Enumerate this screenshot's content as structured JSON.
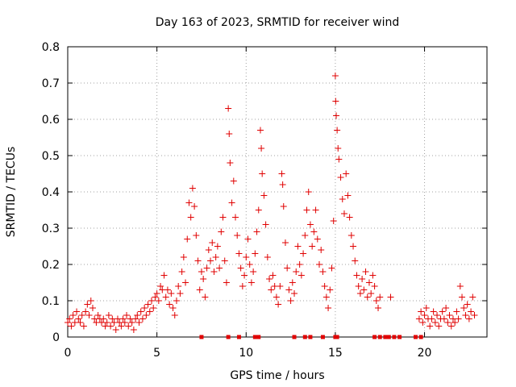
{
  "chart_data": {
    "type": "scatter",
    "title": "Day 163 of 2023, SRMTID for receiver wind",
    "xlabel": "GPS time / hours",
    "ylabel": "SRMTID / TECUs",
    "xlim": [
      0,
      23.5
    ],
    "ylim": [
      0,
      0.8
    ],
    "x_ticks": [
      "0",
      "5",
      "10",
      "15",
      "20"
    ],
    "y_ticks": [
      "0",
      "0.1",
      "0.2",
      "0.3",
      "0.4",
      "0.5",
      "0.6",
      "0.7",
      "0.8"
    ],
    "grid": true,
    "marker": "+",
    "marker_color": "#e00000",
    "series": [
      {
        "name": "SRMTID",
        "points": [
          [
            0.0,
            0.04
          ],
          [
            0.1,
            0.05
          ],
          [
            0.2,
            0.03
          ],
          [
            0.3,
            0.06
          ],
          [
            0.4,
            0.04
          ],
          [
            0.5,
            0.07
          ],
          [
            0.6,
            0.05
          ],
          [
            0.7,
            0.04
          ],
          [
            0.8,
            0.06
          ],
          [
            0.9,
            0.03
          ],
          [
            1.0,
            0.07
          ],
          [
            1.1,
            0.09
          ],
          [
            1.2,
            0.06
          ],
          [
            1.3,
            0.1
          ],
          [
            1.4,
            0.08
          ],
          [
            1.5,
            0.05
          ],
          [
            1.6,
            0.04
          ],
          [
            1.7,
            0.06
          ],
          [
            1.8,
            0.05
          ],
          [
            1.9,
            0.04
          ],
          [
            2.0,
            0.05
          ],
          [
            2.1,
            0.03
          ],
          [
            2.2,
            0.04
          ],
          [
            2.3,
            0.06
          ],
          [
            2.4,
            0.03
          ],
          [
            2.5,
            0.05
          ],
          [
            2.6,
            0.04
          ],
          [
            2.7,
            0.02
          ],
          [
            2.8,
            0.05
          ],
          [
            2.9,
            0.04
          ],
          [
            3.0,
            0.03
          ],
          [
            3.1,
            0.05
          ],
          [
            3.2,
            0.04
          ],
          [
            3.3,
            0.06
          ],
          [
            3.4,
            0.03
          ],
          [
            3.5,
            0.05
          ],
          [
            3.6,
            0.04
          ],
          [
            3.7,
            0.02
          ],
          [
            3.8,
            0.05
          ],
          [
            3.9,
            0.06
          ],
          [
            4.0,
            0.04
          ],
          [
            4.1,
            0.07
          ],
          [
            4.2,
            0.05
          ],
          [
            4.3,
            0.08
          ],
          [
            4.4,
            0.06
          ],
          [
            4.5,
            0.09
          ],
          [
            4.6,
            0.07
          ],
          [
            4.7,
            0.1
          ],
          [
            4.8,
            0.08
          ],
          [
            4.9,
            0.11
          ],
          [
            5.0,
            0.12
          ],
          [
            5.1,
            0.1
          ],
          [
            5.2,
            0.14
          ],
          [
            5.3,
            0.13
          ],
          [
            5.4,
            0.17
          ],
          [
            5.5,
            0.11
          ],
          [
            5.6,
            0.13
          ],
          [
            5.7,
            0.09
          ],
          [
            5.8,
            0.12
          ],
          [
            5.9,
            0.08
          ],
          [
            6.0,
            0.06
          ],
          [
            6.1,
            0.1
          ],
          [
            6.2,
            0.14
          ],
          [
            6.3,
            0.12
          ],
          [
            6.4,
            0.18
          ],
          [
            6.5,
            0.22
          ],
          [
            6.6,
            0.15
          ],
          [
            6.7,
            0.27
          ],
          [
            6.8,
            0.37
          ],
          [
            6.9,
            0.33
          ],
          [
            7.0,
            0.41
          ],
          [
            7.1,
            0.36
          ],
          [
            7.2,
            0.28
          ],
          [
            7.3,
            0.21
          ],
          [
            7.4,
            0.13
          ],
          [
            7.5,
            0.18
          ],
          [
            7.6,
            0.16
          ],
          [
            7.7,
            0.11
          ],
          [
            7.8,
            0.19
          ],
          [
            7.9,
            0.24
          ],
          [
            8.0,
            0.21
          ],
          [
            8.1,
            0.26
          ],
          [
            8.2,
            0.18
          ],
          [
            8.3,
            0.22
          ],
          [
            8.4,
            0.25
          ],
          [
            8.5,
            0.19
          ],
          [
            8.6,
            0.29
          ],
          [
            8.7,
            0.33
          ],
          [
            8.8,
            0.21
          ],
          [
            8.9,
            0.15
          ],
          [
            9.0,
            0.63
          ],
          [
            9.05,
            0.56
          ],
          [
            9.1,
            0.48
          ],
          [
            9.2,
            0.37
          ],
          [
            9.3,
            0.43
          ],
          [
            9.4,
            0.33
          ],
          [
            9.5,
            0.28
          ],
          [
            9.6,
            0.23
          ],
          [
            9.7,
            0.19
          ],
          [
            9.8,
            0.14
          ],
          [
            9.9,
            0.17
          ],
          [
            10.0,
            0.22
          ],
          [
            10.1,
            0.27
          ],
          [
            10.2,
            0.2
          ],
          [
            10.3,
            0.15
          ],
          [
            10.4,
            0.18
          ],
          [
            10.5,
            0.23
          ],
          [
            10.6,
            0.29
          ],
          [
            10.7,
            0.35
          ],
          [
            10.8,
            0.57
          ],
          [
            10.85,
            0.52
          ],
          [
            10.9,
            0.45
          ],
          [
            11.0,
            0.39
          ],
          [
            11.1,
            0.31
          ],
          [
            11.2,
            0.22
          ],
          [
            11.3,
            0.16
          ],
          [
            11.4,
            0.13
          ],
          [
            11.5,
            0.17
          ],
          [
            11.6,
            0.14
          ],
          [
            11.7,
            0.11
          ],
          [
            11.8,
            0.09
          ],
          [
            11.9,
            0.14
          ],
          [
            12.0,
            0.45
          ],
          [
            12.05,
            0.42
          ],
          [
            12.1,
            0.36
          ],
          [
            12.2,
            0.26
          ],
          [
            12.3,
            0.19
          ],
          [
            12.4,
            0.13
          ],
          [
            12.5,
            0.1
          ],
          [
            12.6,
            0.15
          ],
          [
            12.7,
            0.12
          ],
          [
            12.8,
            0.18
          ],
          [
            12.9,
            0.25
          ],
          [
            13.0,
            0.2
          ],
          [
            13.1,
            0.17
          ],
          [
            13.2,
            0.23
          ],
          [
            13.3,
            0.28
          ],
          [
            13.4,
            0.35
          ],
          [
            13.5,
            0.4
          ],
          [
            13.6,
            0.31
          ],
          [
            13.7,
            0.25
          ],
          [
            13.8,
            0.29
          ],
          [
            13.9,
            0.35
          ],
          [
            14.0,
            0.27
          ],
          [
            14.1,
            0.2
          ],
          [
            14.2,
            0.24
          ],
          [
            14.3,
            0.18
          ],
          [
            14.4,
            0.14
          ],
          [
            14.5,
            0.11
          ],
          [
            14.6,
            0.08
          ],
          [
            14.7,
            0.13
          ],
          [
            14.8,
            0.19
          ],
          [
            14.9,
            0.32
          ],
          [
            15.0,
            0.72
          ],
          [
            15.02,
            0.65
          ],
          [
            15.05,
            0.61
          ],
          [
            15.1,
            0.57
          ],
          [
            15.15,
            0.52
          ],
          [
            15.2,
            0.49
          ],
          [
            15.3,
            0.44
          ],
          [
            15.4,
            0.38
          ],
          [
            15.5,
            0.34
          ],
          [
            15.6,
            0.45
          ],
          [
            15.7,
            0.39
          ],
          [
            15.8,
            0.33
          ],
          [
            15.9,
            0.28
          ],
          [
            16.0,
            0.25
          ],
          [
            16.1,
            0.21
          ],
          [
            16.2,
            0.17
          ],
          [
            16.3,
            0.14
          ],
          [
            16.4,
            0.12
          ],
          [
            16.5,
            0.16
          ],
          [
            16.6,
            0.13
          ],
          [
            16.7,
            0.18
          ],
          [
            16.8,
            0.11
          ],
          [
            16.9,
            0.15
          ],
          [
            17.0,
            0.12
          ],
          [
            17.1,
            0.17
          ],
          [
            17.2,
            0.14
          ],
          [
            17.3,
            0.1
          ],
          [
            17.4,
            0.08
          ],
          [
            17.5,
            0.11
          ],
          [
            18.1,
            0.11
          ],
          [
            19.7,
            0.05
          ],
          [
            19.8,
            0.07
          ],
          [
            19.9,
            0.04
          ],
          [
            20.0,
            0.06
          ],
          [
            20.1,
            0.08
          ],
          [
            20.2,
            0.05
          ],
          [
            20.3,
            0.03
          ],
          [
            20.4,
            0.05
          ],
          [
            20.5,
            0.07
          ],
          [
            20.6,
            0.04
          ],
          [
            20.7,
            0.06
          ],
          [
            20.8,
            0.03
          ],
          [
            20.9,
            0.05
          ],
          [
            21.0,
            0.07
          ],
          [
            21.1,
            0.05
          ],
          [
            21.2,
            0.08
          ],
          [
            21.3,
            0.04
          ],
          [
            21.4,
            0.06
          ],
          [
            21.5,
            0.03
          ],
          [
            21.6,
            0.05
          ],
          [
            21.7,
            0.04
          ],
          [
            21.8,
            0.07
          ],
          [
            21.9,
            0.05
          ],
          [
            22.0,
            0.14
          ],
          [
            22.1,
            0.11
          ],
          [
            22.2,
            0.08
          ],
          [
            22.3,
            0.06
          ],
          [
            22.4,
            0.09
          ],
          [
            22.5,
            0.05
          ],
          [
            22.6,
            0.07
          ],
          [
            22.7,
            0.11
          ],
          [
            22.8,
            0.06
          ]
        ]
      }
    ],
    "zero_markers_x": [
      7.5,
      9.0,
      9.6,
      10.5,
      10.7,
      12.7,
      13.3,
      13.6,
      14.3,
      15.0,
      15.1,
      17.2,
      17.5,
      17.8,
      18.0,
      18.3,
      18.6,
      19.5,
      19.8
    ]
  }
}
